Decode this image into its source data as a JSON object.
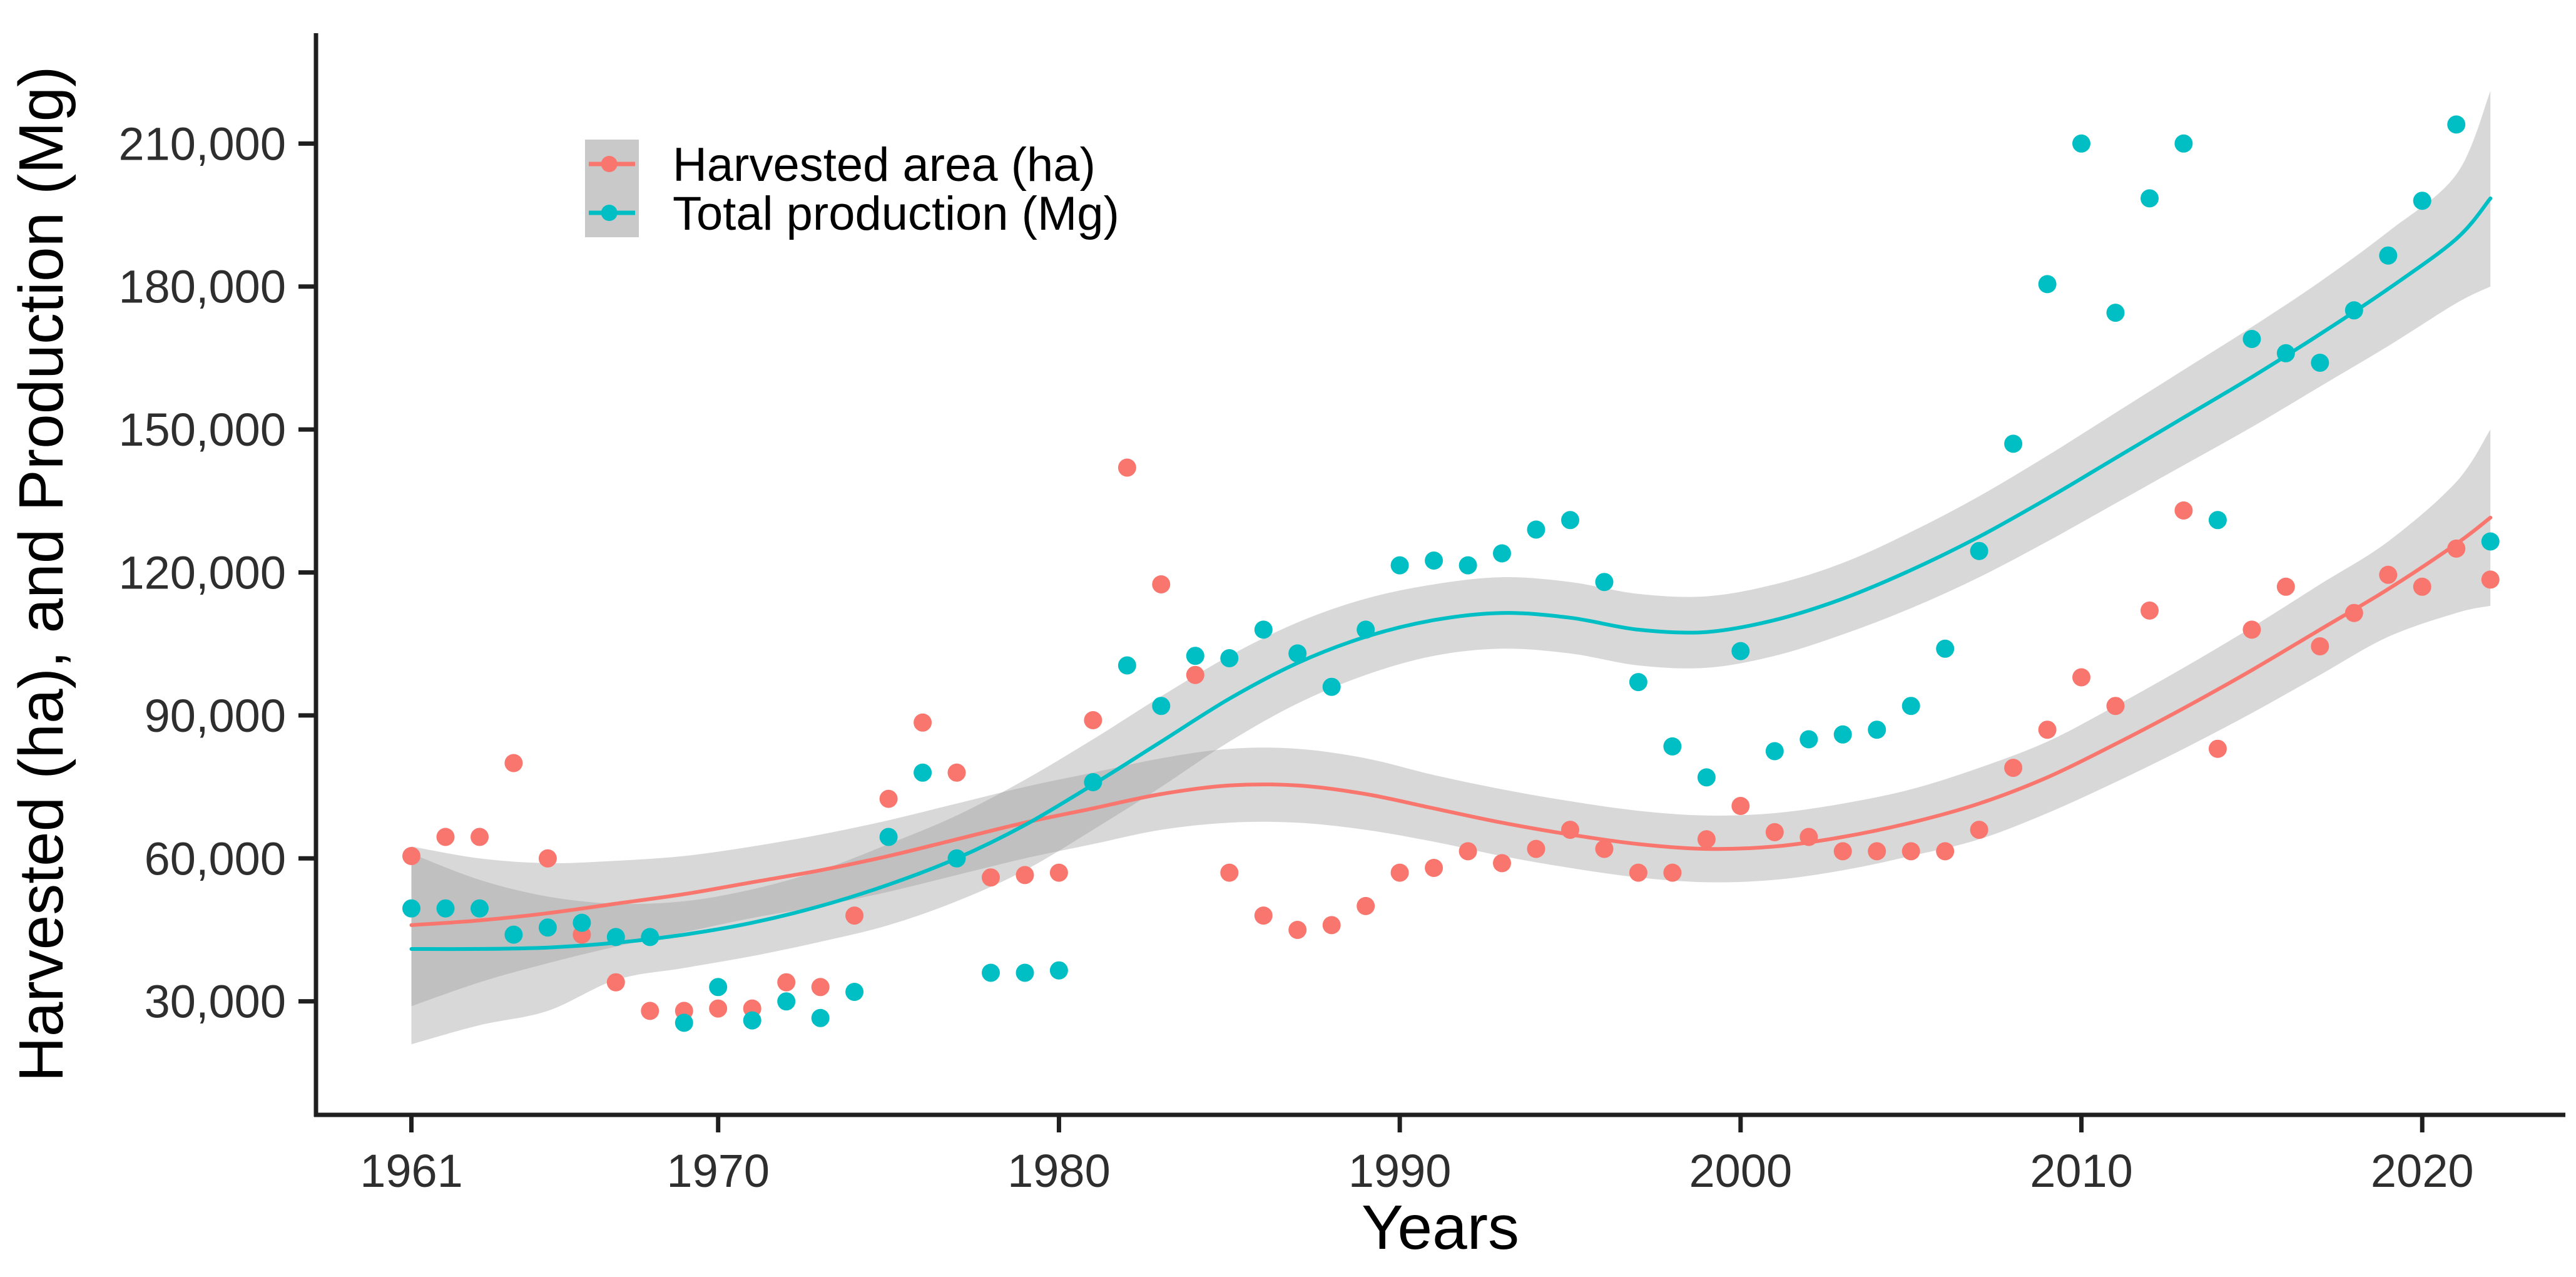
{
  "chart_data": {
    "type": "scatter",
    "title": "",
    "xlabel": "Years",
    "ylabel": "Harvested (ha), and Production (Mg)",
    "grid": false,
    "legend_position": "inside-top-left",
    "x_domain": [
      1958.2,
      2024.2
    ],
    "y_domain": [
      6184,
      233159
    ],
    "x_ticks": {
      "values": [
        1961,
        1970,
        1980,
        1990,
        2000,
        2010,
        2020
      ],
      "labels": [
        "1961",
        "1970",
        "1980",
        "1990",
        "2000",
        "2010",
        "2020"
      ]
    },
    "y_ticks": {
      "values": [
        30000,
        60000,
        90000,
        120000,
        150000,
        180000,
        210000
      ],
      "labels": [
        "30,000",
        "60,000",
        "90,000",
        "120,000",
        "150,000",
        "180,000",
        "210,000"
      ]
    },
    "ribbon_color": "#999999",
    "ribbon_opacity": 0.38,
    "series": [
      {
        "name": "Harvested area (ha)",
        "color": "#F8766D",
        "points": [
          [
            1961,
            60500
          ],
          [
            1962,
            64500
          ],
          [
            1963,
            64500
          ],
          [
            1964,
            80000
          ],
          [
            1965,
            60000
          ],
          [
            1966,
            44000
          ],
          [
            1967,
            34000
          ],
          [
            1968,
            28000
          ],
          [
            1969,
            28000
          ],
          [
            1970,
            28500
          ],
          [
            1971,
            28500
          ],
          [
            1972,
            34000
          ],
          [
            1973,
            33000
          ],
          [
            1974,
            48000
          ],
          [
            1975,
            72500
          ],
          [
            1976,
            88500
          ],
          [
            1977,
            78000
          ],
          [
            1978,
            56000
          ],
          [
            1979,
            56500
          ],
          [
            1980,
            57000
          ],
          [
            1981,
            89000
          ],
          [
            1982,
            142000
          ],
          [
            1983,
            117500
          ],
          [
            1984,
            98500
          ],
          [
            1985,
            57000
          ],
          [
            1986,
            48000
          ],
          [
            1987,
            45000
          ],
          [
            1988,
            46000
          ],
          [
            1989,
            50000
          ],
          [
            1990,
            57000
          ],
          [
            1991,
            58000
          ],
          [
            1992,
            61500
          ],
          [
            1993,
            59000
          ],
          [
            1994,
            62000
          ],
          [
            1995,
            66000
          ],
          [
            1996,
            62000
          ],
          [
            1997,
            57000
          ],
          [
            1998,
            57000
          ],
          [
            1999,
            64000
          ],
          [
            2000,
            71000
          ],
          [
            2001,
            65500
          ],
          [
            2002,
            64500
          ],
          [
            2003,
            61500
          ],
          [
            2004,
            61500
          ],
          [
            2005,
            61500
          ],
          [
            2006,
            61500
          ],
          [
            2007,
            66000
          ],
          [
            2008,
            79000
          ],
          [
            2009,
            87000
          ],
          [
            2010,
            98000
          ],
          [
            2011,
            92000
          ],
          [
            2012,
            112000
          ],
          [
            2013,
            133000
          ],
          [
            2014,
            83000
          ],
          [
            2015,
            108000
          ],
          [
            2016,
            117000
          ],
          [
            2017,
            104500
          ],
          [
            2018,
            111500
          ],
          [
            2019,
            119500
          ],
          [
            2020,
            117000
          ],
          [
            2021,
            125000
          ],
          [
            2022,
            118500
          ]
        ],
        "smooth": [
          [
            1961,
            46000
          ],
          [
            1963,
            47000
          ],
          [
            1965,
            48500
          ],
          [
            1967,
            50500
          ],
          [
            1969,
            52500
          ],
          [
            1971,
            55000
          ],
          [
            1973,
            57500
          ],
          [
            1975,
            60500
          ],
          [
            1977,
            64000
          ],
          [
            1979,
            67500
          ],
          [
            1981,
            70500
          ],
          [
            1983,
            73500
          ],
          [
            1985,
            75300
          ],
          [
            1987,
            75300
          ],
          [
            1989,
            73500
          ],
          [
            1991,
            70500
          ],
          [
            1993,
            67500
          ],
          [
            1995,
            65000
          ],
          [
            1997,
            63000
          ],
          [
            1999,
            62000
          ],
          [
            2001,
            62500
          ],
          [
            2003,
            64500
          ],
          [
            2005,
            67500
          ],
          [
            2007,
            71500
          ],
          [
            2009,
            77000
          ],
          [
            2011,
            84000
          ],
          [
            2013,
            91500
          ],
          [
            2015,
            99500
          ],
          [
            2017,
            108000
          ],
          [
            2019,
            116500
          ],
          [
            2021,
            126000
          ],
          [
            2022,
            131500
          ]
        ],
        "ribbon": [
          [
            1961,
            29000,
            62500
          ],
          [
            1963,
            34000,
            60000
          ],
          [
            1965,
            38000,
            59000
          ],
          [
            1967,
            41500,
            59500
          ],
          [
            1969,
            44500,
            60500
          ],
          [
            1971,
            47500,
            62500
          ],
          [
            1973,
            50000,
            65000
          ],
          [
            1975,
            53000,
            68000
          ],
          [
            1977,
            56500,
            71500
          ],
          [
            1979,
            60000,
            75000
          ],
          [
            1981,
            63000,
            78000
          ],
          [
            1983,
            66000,
            81000
          ],
          [
            1985,
            67500,
            83000
          ],
          [
            1987,
            67500,
            83000
          ],
          [
            1989,
            66000,
            81000
          ],
          [
            1991,
            63500,
            77500
          ],
          [
            1993,
            60500,
            74500
          ],
          [
            1995,
            58000,
            72000
          ],
          [
            1997,
            56000,
            70000
          ],
          [
            1999,
            55000,
            69000
          ],
          [
            2001,
            55500,
            69500
          ],
          [
            2003,
            57500,
            71500
          ],
          [
            2005,
            60500,
            74500
          ],
          [
            2007,
            64000,
            79000
          ],
          [
            2009,
            69500,
            84500
          ],
          [
            2011,
            76000,
            92000
          ],
          [
            2013,
            83000,
            100000
          ],
          [
            2015,
            90500,
            108500
          ],
          [
            2017,
            98500,
            117500
          ],
          [
            2019,
            106500,
            126500
          ],
          [
            2021,
            111500,
            139000
          ],
          [
            2022,
            113000,
            150000
          ]
        ]
      },
      {
        "name": "Total production (Mg)",
        "color": "#00BFC4",
        "points": [
          [
            1961,
            49500
          ],
          [
            1962,
            49500
          ],
          [
            1963,
            49500
          ],
          [
            1964,
            44000
          ],
          [
            1965,
            45500
          ],
          [
            1966,
            46500
          ],
          [
            1967,
            43500
          ],
          [
            1968,
            43500
          ],
          [
            1969,
            25500
          ],
          [
            1970,
            33000
          ],
          [
            1971,
            26000
          ],
          [
            1972,
            30000
          ],
          [
            1973,
            26500
          ],
          [
            1974,
            32000
          ],
          [
            1975,
            64500
          ],
          [
            1976,
            78000
          ],
          [
            1977,
            60000
          ],
          [
            1978,
            36000
          ],
          [
            1979,
            36000
          ],
          [
            1980,
            36500
          ],
          [
            1981,
            76000
          ],
          [
            1982,
            100500
          ],
          [
            1983,
            92000
          ],
          [
            1984,
            102500
          ],
          [
            1985,
            102000
          ],
          [
            1986,
            108000
          ],
          [
            1987,
            103000
          ],
          [
            1988,
            96000
          ],
          [
            1989,
            108000
          ],
          [
            1990,
            121500
          ],
          [
            1991,
            122500
          ],
          [
            1992,
            121500
          ],
          [
            1993,
            124000
          ],
          [
            1994,
            129000
          ],
          [
            1995,
            131000
          ],
          [
            1996,
            118000
          ],
          [
            1997,
            97000
          ],
          [
            1998,
            83500
          ],
          [
            1999,
            77000
          ],
          [
            2000,
            103500
          ],
          [
            2001,
            82500
          ],
          [
            2002,
            85000
          ],
          [
            2003,
            86000
          ],
          [
            2004,
            87000
          ],
          [
            2005,
            92000
          ],
          [
            2006,
            104000
          ],
          [
            2007,
            124500
          ],
          [
            2008,
            147000
          ],
          [
            2009,
            180500
          ],
          [
            2010,
            210000
          ],
          [
            2011,
            174500
          ],
          [
            2012,
            198500
          ],
          [
            2013,
            210000
          ],
          [
            2014,
            131000
          ],
          [
            2015,
            169000
          ],
          [
            2016,
            166000
          ],
          [
            2017,
            164000
          ],
          [
            2018,
            175000
          ],
          [
            2019,
            186500
          ],
          [
            2020,
            198000
          ],
          [
            2021,
            214000
          ],
          [
            2022,
            126500
          ]
        ],
        "smooth": [
          [
            1961,
            41000
          ],
          [
            1963,
            41000
          ],
          [
            1965,
            41300
          ],
          [
            1967,
            42300
          ],
          [
            1969,
            44000
          ],
          [
            1971,
            46500
          ],
          [
            1973,
            50000
          ],
          [
            1975,
            54500
          ],
          [
            1977,
            60000
          ],
          [
            1979,
            67000
          ],
          [
            1981,
            75500
          ],
          [
            1983,
            84500
          ],
          [
            1985,
            93500
          ],
          [
            1987,
            101000
          ],
          [
            1989,
            106500
          ],
          [
            1991,
            110000
          ],
          [
            1993,
            111500
          ],
          [
            1995,
            110500
          ],
          [
            1997,
            108000
          ],
          [
            1999,
            107500
          ],
          [
            2001,
            110000
          ],
          [
            2003,
            114500
          ],
          [
            2005,
            120500
          ],
          [
            2007,
            127500
          ],
          [
            2009,
            135500
          ],
          [
            2011,
            144000
          ],
          [
            2013,
            152500
          ],
          [
            2015,
            161000
          ],
          [
            2017,
            170000
          ],
          [
            2019,
            179500
          ],
          [
            2021,
            190000
          ],
          [
            2022,
            198500
          ]
        ],
        "ribbon": [
          [
            1961,
            21000,
            61000
          ],
          [
            1963,
            25000,
            55500
          ],
          [
            1965,
            28000,
            52000
          ],
          [
            1967,
            34500,
            50500
          ],
          [
            1969,
            37000,
            51000
          ],
          [
            1971,
            39500,
            53500
          ],
          [
            1973,
            42500,
            57500
          ],
          [
            1975,
            46000,
            63000
          ],
          [
            1977,
            51000,
            69000
          ],
          [
            1979,
            57500,
            76500
          ],
          [
            1981,
            66000,
            85000
          ],
          [
            1983,
            75000,
            94000
          ],
          [
            1985,
            84500,
            102500
          ],
          [
            1987,
            92500,
            109500
          ],
          [
            1989,
            98500,
            114500
          ],
          [
            1991,
            102500,
            117500
          ],
          [
            1993,
            104000,
            119000
          ],
          [
            1995,
            103000,
            118000
          ],
          [
            1997,
            100500,
            115500
          ],
          [
            1999,
            100000,
            115000
          ],
          [
            2001,
            102500,
            117500
          ],
          [
            2003,
            107000,
            122000
          ],
          [
            2005,
            112500,
            128500
          ],
          [
            2007,
            119000,
            136000
          ],
          [
            2009,
            126500,
            144500
          ],
          [
            2011,
            134500,
            153500
          ],
          [
            2013,
            142500,
            162500
          ],
          [
            2015,
            150500,
            171500
          ],
          [
            2017,
            159000,
            181000
          ],
          [
            2019,
            167500,
            191500
          ],
          [
            2021,
            176500,
            203500
          ],
          [
            2022,
            180000,
            221000
          ]
        ]
      }
    ]
  },
  "legend": {
    "items": [
      {
        "label": "Harvested area (ha)",
        "color": "#F8766D",
        "key_fill": "#C9C9C9"
      },
      {
        "label": "Total production (Mg)",
        "color": "#00BFC4",
        "key_fill": "#C9C9C9"
      }
    ]
  },
  "axes": {
    "x": {
      "title": "Years"
    },
    "y": {
      "title": "Harvested (ha), and Production (Mg)"
    },
    "line_color": "#1f1f1f",
    "tick_color": "#1f1f1f",
    "tick_label_color": "#2e2e2e"
  }
}
